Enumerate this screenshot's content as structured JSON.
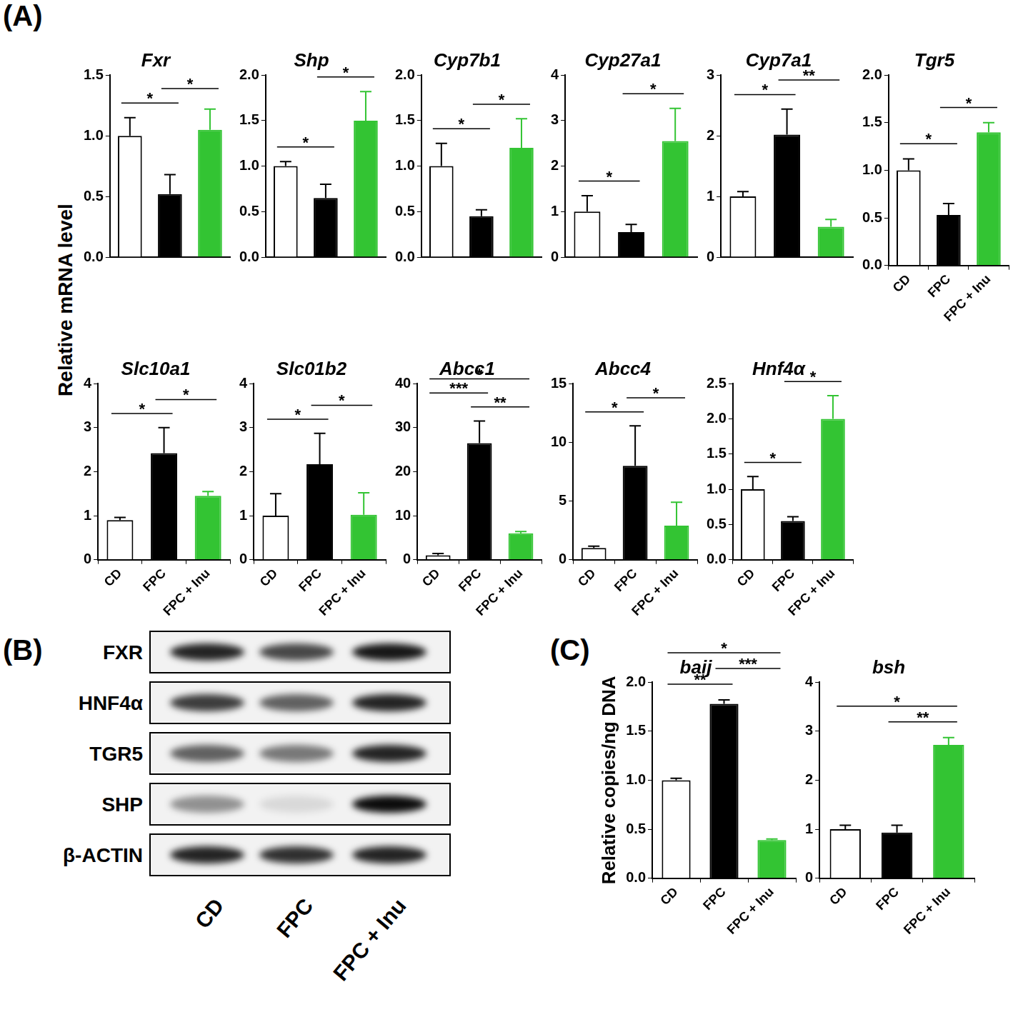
{
  "chart_data": [
    {
      "type": "bar",
      "title": "Fxr",
      "categories": [
        "CD",
        "FPC",
        "FPC + Inu"
      ],
      "values": [
        1.0,
        0.52,
        1.05
      ],
      "errors": [
        0.15,
        0.16,
        0.17
      ],
      "colors": [
        "#ffffff",
        "#000000",
        "#33c433"
      ],
      "ylim": [
        0,
        1.5
      ],
      "yticks": [
        {
          "value": 0,
          "label": "0.0"
        },
        {
          "value": 0.5,
          "label": "0.5"
        },
        {
          "value": 1,
          "label": "1.0"
        },
        {
          "value": 1.5,
          "label": "1.5"
        }
      ],
      "tick_labels": "y",
      "significance": [
        {
          "from": 0,
          "to": 1,
          "label": "*"
        },
        {
          "from": 1,
          "to": 2,
          "label": "*"
        }
      ]
    },
    {
      "type": "bar",
      "title": "Shp",
      "categories": [
        "CD",
        "FPC",
        "FPC + Inu"
      ],
      "values": [
        1.0,
        0.65,
        1.5
      ],
      "errors": [
        0.05,
        0.15,
        0.32
      ],
      "colors": [
        "#ffffff",
        "#000000",
        "#33c433"
      ],
      "ylim": [
        0,
        2
      ],
      "yticks": [
        {
          "value": 0,
          "label": "0.0"
        },
        {
          "value": 0.5,
          "label": "0.5"
        },
        {
          "value": 1,
          "label": "1.0"
        },
        {
          "value": 1.5,
          "label": "1.5"
        },
        {
          "value": 2,
          "label": "2.0"
        }
      ],
      "tick_labels": "y",
      "significance": [
        {
          "from": 0,
          "to": 1,
          "label": "*"
        },
        {
          "from": 1,
          "to": 2,
          "label": "*"
        }
      ]
    },
    {
      "type": "bar",
      "title": "Cyp7b1",
      "categories": [
        "CD",
        "FPC",
        "FPC + Inu"
      ],
      "values": [
        1.0,
        0.45,
        1.2
      ],
      "errors": [
        0.25,
        0.07,
        0.32
      ],
      "colors": [
        "#ffffff",
        "#000000",
        "#33c433"
      ],
      "ylim": [
        0,
        2
      ],
      "yticks": [
        {
          "value": 0,
          "label": "0.0"
        },
        {
          "value": 0.5,
          "label": "0.5"
        },
        {
          "value": 1,
          "label": "1.0"
        },
        {
          "value": 1.5,
          "label": "1.5"
        },
        {
          "value": 2,
          "label": "2.0"
        }
      ],
      "tick_labels": "y",
      "significance": [
        {
          "from": 0,
          "to": 1,
          "label": "*"
        },
        {
          "from": 1,
          "to": 2,
          "label": "*"
        }
      ]
    },
    {
      "type": "bar",
      "title": "Cyp27a1",
      "categories": [
        "CD",
        "FPC",
        "FPC + Inu"
      ],
      "values": [
        1.0,
        0.55,
        2.55
      ],
      "errors": [
        0.35,
        0.17,
        0.72
      ],
      "colors": [
        "#ffffff",
        "#000000",
        "#33c433"
      ],
      "ylim": [
        0,
        4
      ],
      "yticks": [
        0,
        1,
        2,
        3,
        4
      ],
      "tick_labels": "y",
      "significance": [
        {
          "from": 0,
          "to": 1,
          "label": "*"
        },
        {
          "from": 1,
          "to": 2,
          "label": "*"
        }
      ]
    },
    {
      "type": "bar",
      "title": "Cyp7a1",
      "categories": [
        "CD",
        "FPC",
        "FPC + Inu"
      ],
      "values": [
        1.0,
        2.02,
        0.5
      ],
      "errors": [
        0.08,
        0.42,
        0.12
      ],
      "colors": [
        "#ffffff",
        "#000000",
        "#33c433"
      ],
      "ylim": [
        0,
        3
      ],
      "yticks": [
        0,
        1,
        2,
        3
      ],
      "tick_labels": "y",
      "significance": [
        {
          "from": 0,
          "to": 1,
          "label": "*"
        },
        {
          "from": 1,
          "to": 2,
          "label": "**"
        }
      ]
    },
    {
      "type": "bar",
      "title": "Tgr5",
      "categories": [
        "CD",
        "FPC",
        "FPC + Inu"
      ],
      "values": [
        1.0,
        0.53,
        1.4
      ],
      "errors": [
        0.12,
        0.12,
        0.1
      ],
      "colors": [
        "#ffffff",
        "#000000",
        "#33c433"
      ],
      "ylim": [
        0,
        2
      ],
      "yticks": [
        {
          "value": 0,
          "label": "0.0"
        },
        {
          "value": 0.5,
          "label": "0.5"
        },
        {
          "value": 1,
          "label": "1.0"
        },
        {
          "value": 1.5,
          "label": "1.5"
        },
        {
          "value": 2,
          "label": "2.0"
        }
      ],
      "significance": [
        {
          "from": 0,
          "to": 1,
          "label": "*"
        },
        {
          "from": 1,
          "to": 2,
          "label": "*"
        }
      ]
    },
    {
      "type": "bar",
      "title": "Slc10a1",
      "categories": [
        "CD",
        "FPC",
        "FPC + Inu"
      ],
      "values": [
        0.9,
        2.42,
        1.45
      ],
      "errors": [
        0.06,
        0.58,
        0.1
      ],
      "colors": [
        "#ffffff",
        "#000000",
        "#33c433"
      ],
      "ylim": [
        0,
        4
      ],
      "yticks": [
        0,
        1,
        2,
        3,
        4
      ],
      "significance": [
        {
          "from": 0,
          "to": 1,
          "label": "*"
        },
        {
          "from": 1,
          "to": 2,
          "label": "*"
        }
      ]
    },
    {
      "type": "bar",
      "title": "Slc01b2",
      "categories": [
        "CD",
        "FPC",
        "FPC + Inu"
      ],
      "values": [
        1.0,
        2.17,
        1.02
      ],
      "errors": [
        0.5,
        0.7,
        0.5
      ],
      "colors": [
        "#ffffff",
        "#000000",
        "#33c433"
      ],
      "ylim": [
        0,
        4
      ],
      "yticks": [
        0,
        1,
        2,
        3,
        4
      ],
      "significance": [
        {
          "from": 0,
          "to": 1,
          "label": "*"
        },
        {
          "from": 1,
          "to": 2,
          "label": "*"
        }
      ]
    },
    {
      "type": "bar",
      "title": "Abcc1",
      "categories": [
        "CD",
        "FPC",
        "FPC + Inu"
      ],
      "values": [
        1.0,
        26.5,
        6.0
      ],
      "errors": [
        0.4,
        5.0,
        0.4
      ],
      "colors": [
        "#ffffff",
        "#000000",
        "#33c433"
      ],
      "ylim": [
        0,
        40
      ],
      "yticks": [
        0,
        10,
        20,
        30,
        40
      ],
      "significance": [
        {
          "from": 1,
          "to": 2,
          "label": "**"
        },
        {
          "from": 0,
          "to": 1,
          "label": "***"
        },
        {
          "from": 0,
          "to": 2,
          "label": "*"
        }
      ]
    },
    {
      "type": "bar",
      "title": "Abcc4",
      "categories": [
        "CD",
        "FPC",
        "FPC + Inu"
      ],
      "values": [
        1.0,
        8.0,
        2.9
      ],
      "errors": [
        0.15,
        3.4,
        2.0
      ],
      "colors": [
        "#ffffff",
        "#000000",
        "#33c433"
      ],
      "ylim": [
        0,
        15
      ],
      "yticks": [
        0,
        5,
        10,
        15
      ],
      "significance": [
        {
          "from": 0,
          "to": 1,
          "label": "*"
        },
        {
          "from": 1,
          "to": 2,
          "label": "*"
        }
      ]
    },
    {
      "type": "bar",
      "title": "Hnf4α",
      "categories": [
        "CD",
        "FPC",
        "FPC + Inu"
      ],
      "values": [
        1.0,
        0.55,
        2.0
      ],
      "errors": [
        0.18,
        0.06,
        0.33
      ],
      "colors": [
        "#ffffff",
        "#000000",
        "#33c433"
      ],
      "ylim": [
        0,
        2.5
      ],
      "yticks": [
        {
          "value": 0,
          "label": "0.0"
        },
        {
          "value": 0.5,
          "label": "0.5"
        },
        {
          "value": 1,
          "label": "1.0"
        },
        {
          "value": 1.5,
          "label": "1.5"
        },
        {
          "value": 2,
          "label": "2.0"
        },
        {
          "value": 2.5,
          "label": "2.5"
        }
      ],
      "significance": [
        {
          "from": 0,
          "to": 1,
          "label": "*"
        },
        {
          "from": 1,
          "to": 2,
          "label": "*"
        }
      ]
    },
    {
      "type": "bar",
      "title": "baij",
      "y_label": "Relative copies/ng DNA",
      "categories": [
        "CD",
        "FPC",
        "FPC + Inu"
      ],
      "values": [
        1.0,
        1.78,
        0.39
      ],
      "errors": [
        0.02,
        0.04,
        0.01
      ],
      "colors": [
        "#ffffff",
        "#000000",
        "#33c433"
      ],
      "ylim": [
        0,
        2
      ],
      "yticks": [
        {
          "value": 0,
          "label": "0.0"
        },
        {
          "value": 0.5,
          "label": "0.5"
        },
        {
          "value": 1,
          "label": "1.0"
        },
        {
          "value": 1.5,
          "label": "1.5"
        },
        {
          "value": 2,
          "label": "2.0"
        }
      ],
      "significance": [
        {
          "from": 0,
          "to": 1,
          "label": "**"
        },
        {
          "from": 1,
          "to": 2,
          "label": "***"
        },
        {
          "from": 0,
          "to": 2,
          "label": "*"
        }
      ]
    },
    {
      "type": "bar",
      "title": "bsh",
      "categories": [
        "CD",
        "FPC",
        "FPC + Inu"
      ],
      "values": [
        1.0,
        0.93,
        2.72
      ],
      "errors": [
        0.08,
        0.15,
        0.15
      ],
      "colors": [
        "#ffffff",
        "#000000",
        "#33c433"
      ],
      "ylim": [
        0,
        4
      ],
      "yticks": [
        0,
        1,
        2,
        3,
        4
      ],
      "significance": [
        {
          "from": 1,
          "to": 2,
          "label": "**"
        },
        {
          "from": 0,
          "to": 2,
          "label": "*"
        }
      ]
    }
  ],
  "figure": {
    "panel_labels": [
      "(A)",
      "(B)",
      "(C)"
    ],
    "shared_y_label": "Relative mRNA level",
    "blot": {
      "lanes": [
        "CD",
        "FPC",
        "FPC + Inu"
      ],
      "rows": [
        {
          "label": "FXR",
          "intensity": [
            0.85,
            0.7,
            0.9
          ]
        },
        {
          "label": "HNF4α",
          "intensity": [
            0.75,
            0.6,
            0.85
          ]
        },
        {
          "label": "TGR5",
          "intensity": [
            0.6,
            0.5,
            0.85
          ]
        },
        {
          "label": "SHP",
          "intensity": [
            0.4,
            0.1,
            0.95
          ]
        },
        {
          "label": "β-ACTIN",
          "intensity": [
            0.85,
            0.8,
            0.85
          ]
        }
      ]
    }
  }
}
